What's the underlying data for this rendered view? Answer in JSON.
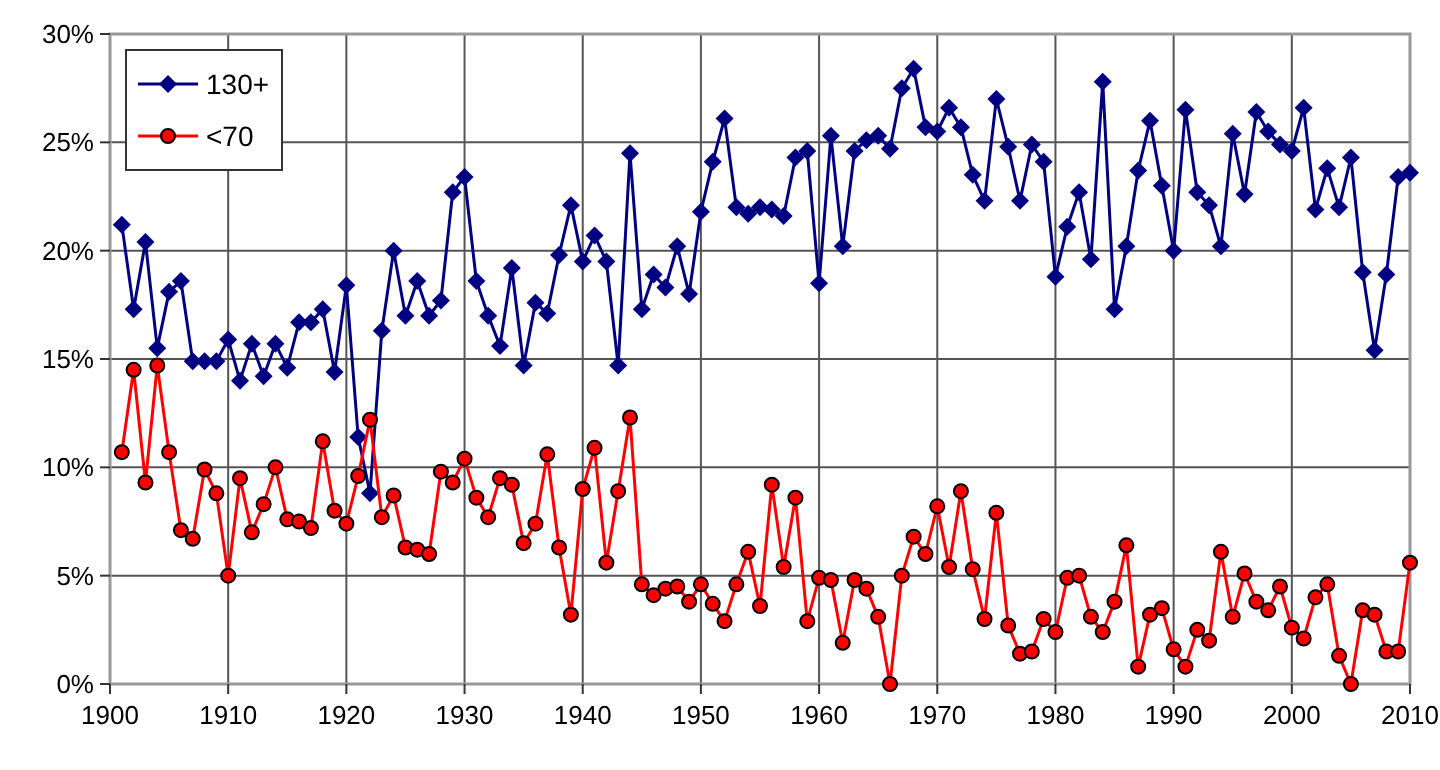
{
  "chart_data": {
    "type": "line",
    "x": [
      1901,
      1902,
      1903,
      1904,
      1905,
      1906,
      1907,
      1908,
      1909,
      1910,
      1911,
      1912,
      1913,
      1914,
      1915,
      1916,
      1917,
      1918,
      1919,
      1920,
      1921,
      1922,
      1923,
      1924,
      1925,
      1926,
      1927,
      1928,
      1929,
      1930,
      1931,
      1932,
      1933,
      1934,
      1935,
      1936,
      1937,
      1938,
      1939,
      1940,
      1941,
      1942,
      1943,
      1944,
      1945,
      1946,
      1947,
      1948,
      1949,
      1950,
      1951,
      1952,
      1953,
      1954,
      1955,
      1956,
      1957,
      1958,
      1959,
      1960,
      1961,
      1962,
      1963,
      1964,
      1965,
      1966,
      1967,
      1968,
      1969,
      1970,
      1971,
      1972,
      1973,
      1974,
      1975,
      1976,
      1977,
      1978,
      1979,
      1980,
      1981,
      1982,
      1983,
      1984,
      1985,
      1986,
      1987,
      1988,
      1989,
      1990,
      1991,
      1992,
      1993,
      1994,
      1995,
      1996,
      1997,
      1998,
      1999,
      2000,
      2001,
      2002,
      2003,
      2004,
      2005,
      2006,
      2007,
      2008,
      2009,
      2010
    ],
    "series": [
      {
        "name": "130+",
        "color": "#000080",
        "marker": "diamond",
        "values": [
          21.2,
          17.3,
          20.4,
          15.5,
          18.1,
          18.6,
          14.9,
          14.9,
          14.9,
          15.9,
          14.0,
          15.7,
          14.2,
          15.7,
          14.6,
          16.7,
          16.7,
          17.3,
          14.4,
          18.4,
          11.4,
          8.8,
          16.3,
          20.0,
          17.0,
          18.6,
          17.0,
          17.7,
          22.7,
          23.4,
          18.6,
          17.0,
          15.6,
          19.2,
          14.7,
          17.6,
          17.1,
          19.8,
          22.1,
          19.5,
          20.7,
          19.5,
          14.7,
          24.5,
          17.3,
          18.9,
          18.3,
          20.2,
          18.0,
          21.8,
          24.1,
          26.1,
          22.0,
          21.7,
          22.0,
          21.9,
          21.6,
          24.3,
          24.6,
          18.5,
          25.3,
          20.2,
          24.6,
          25.1,
          25.3,
          24.7,
          27.5,
          28.4,
          25.7,
          25.5,
          26.6,
          25.7,
          23.5,
          22.3,
          27.0,
          24.8,
          22.3,
          24.9,
          24.1,
          18.8,
          21.1,
          22.7,
          19.6,
          27.8,
          17.3,
          20.2,
          23.7,
          26.0,
          23.0,
          20.0,
          26.5,
          22.7,
          22.1,
          20.2,
          25.4,
          22.6,
          26.4,
          25.5,
          24.9,
          24.6,
          26.6,
          21.9,
          23.8,
          22.0,
          24.3,
          19.0,
          15.4,
          18.9,
          23.4,
          23.6
        ]
      },
      {
        "name": "<70",
        "color": "#ff0000",
        "marker": "circle",
        "values": [
          10.7,
          14.5,
          9.3,
          14.7,
          10.7,
          7.1,
          6.7,
          9.9,
          8.8,
          5.0,
          9.5,
          7.0,
          8.3,
          10.0,
          7.6,
          7.5,
          7.2,
          11.2,
          8.0,
          7.4,
          9.6,
          12.2,
          7.7,
          8.7,
          6.3,
          6.2,
          6.0,
          9.8,
          9.3,
          10.4,
          8.6,
          7.7,
          9.5,
          9.2,
          6.5,
          7.4,
          10.6,
          6.3,
          3.2,
          9.0,
          10.9,
          5.6,
          8.9,
          12.3,
          4.6,
          4.1,
          4.4,
          4.5,
          3.8,
          4.6,
          3.7,
          2.9,
          4.6,
          6.1,
          3.6,
          9.2,
          5.4,
          8.6,
          2.9,
          4.9,
          4.8,
          1.9,
          4.8,
          4.4,
          3.1,
          0.0,
          5.0,
          6.8,
          6.0,
          8.2,
          5.4,
          8.9,
          5.3,
          3.0,
          7.9,
          2.7,
          1.4,
          1.5,
          3.0,
          2.4,
          4.9,
          5.0,
          3.1,
          2.4,
          3.8,
          6.4,
          0.8,
          3.2,
          3.5,
          1.6,
          0.8,
          2.5,
          2.0,
          6.1,
          3.1,
          5.1,
          3.8,
          3.4,
          4.5,
          2.6,
          2.1,
          4.0,
          4.6,
          1.3,
          0.0,
          3.4,
          3.2,
          1.5,
          1.5,
          5.6
        ]
      }
    ],
    "xlim": [
      1900,
      2010
    ],
    "xticks": [
      1900,
      1910,
      1920,
      1930,
      1940,
      1950,
      1960,
      1970,
      1980,
      1990,
      2000,
      2010
    ],
    "ylim": [
      0,
      30
    ],
    "yticks": [
      {
        "value": 0,
        "label": "0%"
      },
      {
        "value": 5,
        "label": "5%"
      },
      {
        "value": 10,
        "label": "10%"
      },
      {
        "value": 15,
        "label": "15%"
      },
      {
        "value": 20,
        "label": "20%"
      },
      {
        "value": 25,
        "label": "25%"
      },
      {
        "value": 30,
        "label": "30%"
      }
    ],
    "grid": true,
    "legend": "top left",
    "line_style": "solid"
  }
}
